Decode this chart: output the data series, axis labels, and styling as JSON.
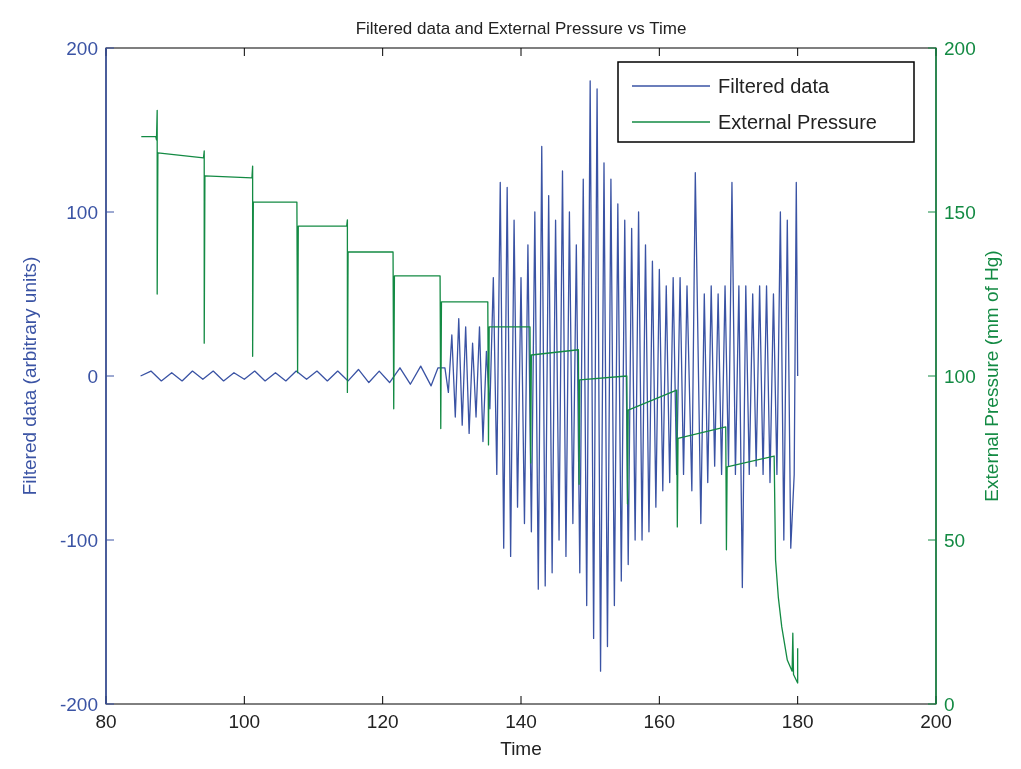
{
  "chart_data": {
    "type": "line",
    "title": "Filtered data and External Pressure vs Time",
    "xlabel": "Time",
    "ylabel": "Filtered data (arbitrary units)",
    "y2label": "External Pressure (mm of Hg)",
    "xlim": [
      80,
      200
    ],
    "xticks": [
      80,
      100,
      120,
      140,
      160,
      180,
      200
    ],
    "ylim": [
      -200,
      200
    ],
    "yticks": [
      -200,
      -100,
      0,
      100,
      200
    ],
    "y2lim": [
      0,
      200
    ],
    "y2ticks": [
      0,
      50,
      100,
      150,
      200
    ],
    "legend": "top right",
    "grid": false,
    "series": [
      {
        "name": "Filtered data",
        "color": "#3a53a4",
        "x": [
          85,
          86.5,
          88,
          89.5,
          91,
          92.5,
          94,
          95.5,
          97,
          98.5,
          100,
          101.5,
          103,
          104.5,
          106,
          107.5,
          109,
          110.5,
          112,
          113.5,
          115,
          116.5,
          118,
          119.5,
          121,
          122.5,
          124,
          125.5,
          127,
          128,
          129,
          129.5,
          130,
          130.5,
          131,
          131.5,
          132,
          132.5,
          133,
          133.5,
          134,
          134.5,
          135,
          135.5,
          136,
          136.5,
          137,
          137.5,
          138,
          138.5,
          139,
          139.5,
          140,
          140.5,
          141,
          141.5,
          142,
          142.5,
          143,
          143.5,
          144,
          144.5,
          145,
          145.5,
          146,
          146.5,
          147,
          147.5,
          148,
          148.5,
          149,
          149.5,
          150,
          150.5,
          151,
          151.5,
          152,
          152.5,
          153,
          153.5,
          154,
          154.5,
          155,
          155.5,
          156,
          156.5,
          157,
          157.5,
          158,
          158.5,
          159,
          159.5,
          160,
          160.5,
          161,
          161.5,
          162,
          162.5,
          163,
          163.5,
          164,
          164.7,
          165.2,
          166,
          166.5,
          167,
          167.5,
          168,
          168.5,
          169,
          169.5,
          170,
          170.5,
          171,
          171.5,
          172,
          172.5,
          173,
          173.5,
          174,
          174.5,
          175,
          175.5,
          176,
          176.5,
          177,
          177.5,
          178,
          178.5,
          179,
          179.5,
          179.8,
          180
        ],
        "values": [
          0,
          3,
          -3,
          2,
          -3,
          3,
          -2,
          3,
          -3,
          2,
          -2,
          3,
          -3,
          2,
          -3,
          3,
          -2,
          3,
          -3,
          3,
          -3,
          4,
          -4,
          3,
          -4,
          5,
          -5,
          6,
          -6,
          5,
          5,
          -10,
          25,
          -25,
          35,
          -30,
          30,
          -35,
          20,
          -25,
          30,
          -40,
          15,
          -20,
          60,
          -60,
          118,
          -105,
          115,
          -110,
          95,
          -80,
          60,
          -90,
          80,
          -95,
          100,
          -130,
          140,
          -128,
          110,
          -120,
          95,
          -100,
          125,
          -110,
          100,
          -90,
          80,
          -120,
          120,
          -140,
          180,
          -160,
          175,
          -180,
          130,
          -165,
          120,
          -140,
          105,
          -125,
          95,
          -115,
          90,
          -100,
          100,
          -100,
          80,
          -95,
          70,
          -80,
          65,
          -70,
          55,
          -65,
          60,
          -60,
          60,
          -60,
          55,
          -70,
          124,
          -90,
          50,
          -65,
          55,
          -55,
          50,
          -60,
          55,
          -55,
          118,
          -60,
          55,
          -129,
          55,
          -60,
          50,
          -55,
          55,
          -60,
          55,
          -65,
          50,
          -60,
          100,
          -100,
          95,
          -105,
          -60,
          118,
          0
        ]
      },
      {
        "name": "External Pressure",
        "color": "#138a43",
        "axis": "y2",
        "x": [
          85.1,
          87.2,
          87.3,
          87.4,
          87.4,
          87.5,
          94.1,
          94.2,
          94.2,
          94.3,
          101.1,
          101.2,
          101.2,
          101.3,
          107.6,
          107.7,
          107.8,
          114.8,
          114.9,
          114.9,
          115,
          121.5,
          121.6,
          121.7,
          128.3,
          128.4,
          128.5,
          135.2,
          135.3,
          135.4,
          141.3,
          141.4,
          141.5,
          148.3,
          148.4,
          148.5,
          155.3,
          155.4,
          155.5,
          162.5,
          162.6,
          162.7,
          169.6,
          169.7,
          169.8,
          176.6,
          176.8,
          177.2,
          177.7,
          178.5,
          179.2,
          179.3,
          179.4,
          180,
          180
        ],
        "values": [
          173,
          173,
          172,
          181,
          125,
          168,
          166.5,
          168.6,
          110,
          161,
          160.4,
          164,
          106,
          153,
          153,
          101,
          145.7,
          145.7,
          147.6,
          95,
          137.8,
          137.8,
          90,
          130.5,
          130.5,
          84,
          122.6,
          122.6,
          79,
          115,
          115,
          73.5,
          106.4,
          108,
          67,
          98.8,
          100,
          61,
          89.6,
          95.7,
          54,
          81,
          84.5,
          47,
          72.3,
          75.6,
          44,
          32.6,
          23.5,
          13.4,
          10,
          21.6,
          9,
          6.4,
          17
        ]
      }
    ]
  }
}
